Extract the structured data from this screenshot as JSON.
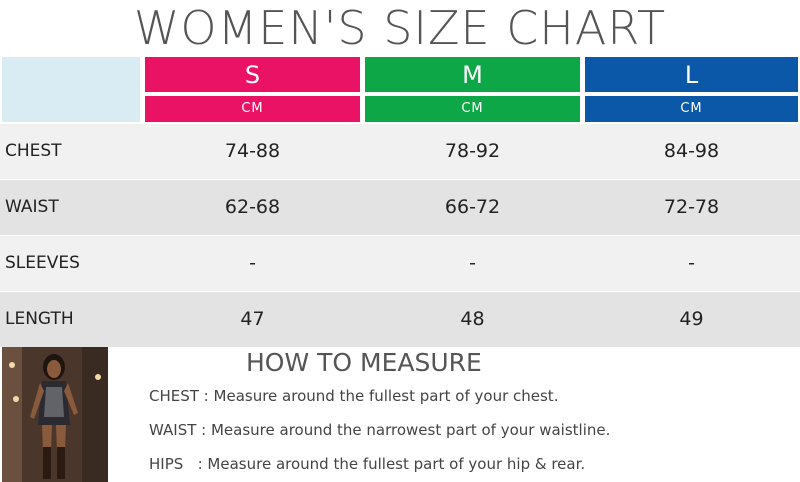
{
  "title": "WOMEN'S SIZE CHART",
  "colors": {
    "s": "#ea1265",
    "m": "#0ea747",
    "l": "#0b57a8",
    "corner": "#d9ecf4",
    "row_light": "#f1f1f1",
    "row_dark": "#e3e3e3"
  },
  "sizes": [
    {
      "label": "S",
      "unit": "CM"
    },
    {
      "label": "M",
      "unit": "CM"
    },
    {
      "label": "L",
      "unit": "CM"
    }
  ],
  "rows": [
    {
      "label": "CHEST",
      "values": [
        "74-88",
        "78-92",
        "84-98"
      ]
    },
    {
      "label": "WAIST",
      "values": [
        "62-68",
        "66-72",
        "72-78"
      ]
    },
    {
      "label": "SLEEVES",
      "values": [
        "-",
        "-",
        "-"
      ]
    },
    {
      "label": "LENGTH",
      "values": [
        "47",
        "48",
        "49"
      ]
    }
  ],
  "how_to_measure": {
    "title": "HOW TO MEASURE",
    "items": [
      {
        "key": "CHEST :",
        "text": "Measure around the fullest part of your chest."
      },
      {
        "key": "WAIST :",
        "text": "Measure around the narrowest part of your waistline."
      },
      {
        "key": "HIPS   :",
        "text": "Measure around the fullest part of your hip & rear."
      }
    ]
  }
}
